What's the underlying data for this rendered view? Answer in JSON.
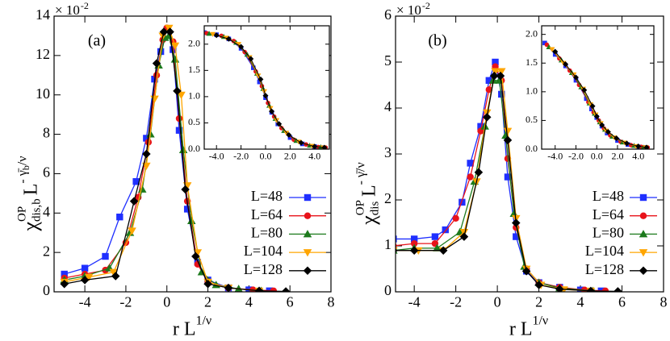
{
  "chart_data": [
    {
      "type": "line",
      "panel_label": "(a)",
      "multiplier": {
        "base": "× 10",
        "exp": "-2"
      },
      "xlabel": {
        "base": "r L",
        "sup": "1/ν"
      },
      "ylabel": {
        "symbol": "χ",
        "sup": "OP",
        "sub": "dis,b",
        "base": "L",
        "exp": "- γ̄",
        "exp_sub": "b",
        "exp_end": "/ν"
      },
      "xlim": [
        -5.5,
        8
      ],
      "ylim": [
        0,
        14
      ],
      "xticks": [
        -4,
        -2,
        0,
        2,
        4,
        6,
        8
      ],
      "yticks": [
        0,
        2,
        4,
        6,
        8,
        10,
        12,
        14
      ],
      "legend": "lower right",
      "series": [
        {
          "name": "L=48",
          "color": "#1f2fff",
          "marker": "square",
          "x": [
            -5,
            -4,
            -3,
            -2.3,
            -1.5,
            -1,
            -0.6,
            -0.3,
            0,
            0.3,
            0.6,
            1,
            1.5,
            2,
            3,
            4,
            5
          ],
          "values": [
            0.9,
            1.2,
            1.8,
            3.8,
            5.6,
            7.8,
            10.8,
            12.2,
            13.3,
            12.3,
            8.2,
            4.2,
            1.5,
            0.6,
            0.2,
            0.1,
            0.05
          ]
        },
        {
          "name": "L=64",
          "color": "#e8131a",
          "marker": "circle",
          "x": [
            -5,
            -4,
            -3,
            -2,
            -1.4,
            -0.9,
            -0.5,
            -0.2,
            0,
            0.3,
            0.6,
            1,
            1.5,
            2,
            3,
            4.2,
            5.2
          ],
          "values": [
            0.7,
            0.9,
            1.1,
            2.5,
            4.8,
            7.6,
            11,
            12.8,
            13.4,
            12.7,
            8.8,
            4.6,
            1.4,
            0.5,
            0.2,
            0.1,
            0.05
          ]
        },
        {
          "name": "L=80",
          "color": "#1c7a1c",
          "marker": "triangle-up",
          "x": [
            -5,
            -4,
            -2.8,
            -1.8,
            -1.2,
            -0.8,
            -0.4,
            -0.1,
            0.1,
            0.4,
            0.8,
            1.2,
            1.7,
            2.4,
            3.5,
            4.6
          ],
          "values": [
            0.6,
            0.8,
            1.2,
            3,
            5.2,
            8,
            11.5,
            12.9,
            13,
            11.8,
            7.2,
            3.6,
            1,
            0.35,
            0.15,
            0.05
          ]
        },
        {
          "name": "L=104",
          "color": "#ffa500",
          "marker": "triangle-down",
          "x": [
            -5,
            -3.8,
            -2.6,
            -1.7,
            -1,
            -0.6,
            -0.2,
            0.1,
            0.4,
            0.7,
            1,
            1.5,
            2,
            3,
            4.5
          ],
          "values": [
            0.5,
            0.75,
            1,
            3.1,
            6.4,
            9.8,
            13,
            13.4,
            12.5,
            10,
            5.4,
            2,
            0.5,
            0.2,
            0.05
          ]
        },
        {
          "name": "L=128",
          "color": "#000000",
          "marker": "diamond",
          "x": [
            -5,
            -4,
            -2.5,
            -1.6,
            -1,
            -0.5,
            -0.15,
            0.15,
            0.5,
            0.9,
            1.4,
            2,
            3,
            4.5,
            5.8
          ],
          "values": [
            0.4,
            0.6,
            0.8,
            4.6,
            7,
            11.6,
            13.2,
            13.2,
            10.2,
            5.2,
            1.8,
            0.4,
            0.2,
            0.05,
            0.02
          ]
        }
      ]
    },
    {
      "type": "line",
      "xlim": [
        -5,
        5.2
      ],
      "ylim": [
        0,
        2.35
      ],
      "xticks": [
        {
          "value": -4,
          "label": "-4.0"
        },
        {
          "value": -2,
          "label": "-2.0"
        },
        {
          "value": 0,
          "label": "0.0"
        },
        {
          "value": 2,
          "label": "2.0"
        },
        {
          "value": 4,
          "label": "4.0"
        }
      ],
      "yticks": [
        {
          "value": 0,
          "label": "0.0"
        },
        {
          "value": 0.5,
          "label": "0.5"
        },
        {
          "value": 1,
          "label": "1.0"
        },
        {
          "value": 1.5,
          "label": "1.5"
        },
        {
          "value": 2,
          "label": "2.0"
        }
      ],
      "series": [
        {
          "color": "#1f2fff",
          "marker": "square",
          "x": [
            -5,
            -4,
            -3,
            -2,
            -1,
            -0.5,
            0,
            0.5,
            1,
            2,
            3,
            4,
            4.6
          ],
          "values": [
            2.22,
            2.18,
            2.1,
            1.92,
            1.55,
            1.28,
            0.98,
            0.7,
            0.48,
            0.22,
            0.1,
            0.05,
            0.03
          ]
        },
        {
          "color": "#e8131a",
          "marker": "circle",
          "x": [
            -4.8,
            -3.6,
            -2.6,
            -1.7,
            -0.8,
            -0.3,
            0.2,
            0.7,
            1.3,
            2.3,
            3.3,
            4.3,
            4.9
          ],
          "values": [
            2.21,
            2.16,
            2.06,
            1.85,
            1.48,
            1.2,
            0.88,
            0.62,
            0.4,
            0.18,
            0.09,
            0.04,
            0.03
          ]
        },
        {
          "color": "#1c7a1c",
          "marker": "triangle-up",
          "x": [
            -4.6,
            -3.4,
            -2.4,
            -1.5,
            -0.7,
            -0.2,
            0.3,
            0.8,
            1.5,
            2.5,
            3.6,
            4.5
          ],
          "values": [
            2.2,
            2.14,
            2.03,
            1.8,
            1.44,
            1.15,
            0.83,
            0.58,
            0.35,
            0.16,
            0.07,
            0.04
          ]
        },
        {
          "color": "#ffa500",
          "marker": "triangle-down",
          "x": [
            -4.3,
            -3.2,
            -2.2,
            -1.3,
            -0.6,
            -0.1,
            0.4,
            0.9,
            1.7,
            2.7,
            3.8,
            4.7
          ],
          "values": [
            2.19,
            2.12,
            2,
            1.75,
            1.4,
            1.1,
            0.78,
            0.55,
            0.31,
            0.14,
            0.06,
            0.03
          ]
        },
        {
          "color": "#000000",
          "marker": "diamond",
          "x": [
            -4,
            -3,
            -2,
            -1.2,
            -0.4,
            0,
            0.5,
            1.1,
            1.9,
            2.9,
            4,
            4.8
          ],
          "values": [
            2.17,
            2.1,
            1.95,
            1.72,
            1.33,
            1.02,
            0.72,
            0.48,
            0.27,
            0.12,
            0.05,
            0.03
          ]
        }
      ]
    },
    {
      "type": "line",
      "panel_label": "(b)",
      "multiplier": {
        "base": "× 10",
        "exp": "-2"
      },
      "xlabel": {
        "base": "r L",
        "sup": "1/ν"
      },
      "ylabel": {
        "symbol": "χ",
        "sup": "OP",
        "sub": "dis",
        "base": "L",
        "exp": "- γ̄/ν"
      },
      "xlim": [
        -4.9,
        8
      ],
      "ylim": [
        0,
        6
      ],
      "xticks": [
        -4,
        -2,
        0,
        2,
        4,
        6,
        8
      ],
      "yticks": [
        0,
        1,
        2,
        3,
        4,
        5,
        6
      ],
      "legend": "lower right",
      "series": [
        {
          "name": "L=48",
          "color": "#1f2fff",
          "marker": "square",
          "x": [
            -5,
            -4,
            -3,
            -2.5,
            -1.7,
            -1.3,
            -0.8,
            -0.4,
            -0.1,
            0.2,
            0.5,
            0.9,
            1.4,
            2,
            3,
            4,
            5
          ],
          "values": [
            1.15,
            1.15,
            1.2,
            1.35,
            1.95,
            2.8,
            3.6,
            4.6,
            5,
            4.3,
            2.5,
            1.2,
            0.45,
            0.2,
            0.1,
            0.04,
            0.02
          ]
        },
        {
          "name": "L=64",
          "color": "#e8131a",
          "marker": "circle",
          "x": [
            -5,
            -4,
            -3,
            -2,
            -1.3,
            -0.8,
            -0.4,
            -0.1,
            0.2,
            0.5,
            0.9,
            1.4,
            2,
            3,
            4.2,
            5.2
          ],
          "values": [
            1,
            1.05,
            1.05,
            1.6,
            2.5,
            3.5,
            4.4,
            4.9,
            4.6,
            2.9,
            1.4,
            0.5,
            0.2,
            0.1,
            0.04,
            0.02
          ]
        },
        {
          "name": "L=80",
          "color": "#1c7a1c",
          "marker": "triangle-up",
          "x": [
            -5,
            -4,
            -2.9,
            -1.8,
            -1.1,
            -0.6,
            -0.2,
            0.1,
            0.4,
            0.8,
            1.3,
            2,
            3,
            4.6
          ],
          "values": [
            0.9,
            0.95,
            0.95,
            1.3,
            2.4,
            3.6,
            4.6,
            4.6,
            3.4,
            1.7,
            0.55,
            0.2,
            0.08,
            0.02
          ]
        },
        {
          "name": "L=104",
          "color": "#ffa500",
          "marker": "triangle-down",
          "x": [
            -5,
            -3.8,
            -2.6,
            -1.6,
            -1,
            -0.5,
            -0.1,
            0.2,
            0.5,
            0.9,
            1.4,
            2.1,
            3.2,
            4.5
          ],
          "values": [
            0.9,
            0.9,
            0.9,
            1.3,
            2.4,
            3.9,
            4.8,
            4.8,
            3.5,
            1.6,
            0.5,
            0.15,
            0.05,
            0.02
          ]
        },
        {
          "name": "L=128",
          "color": "#000000",
          "marker": "diamond",
          "x": [
            -5,
            -4,
            -2.6,
            -1.6,
            -0.9,
            -0.5,
            -0.15,
            0.15,
            0.5,
            0.9,
            1.4,
            2,
            3,
            4.5,
            5.8
          ],
          "values": [
            0.9,
            0.9,
            0.9,
            1.2,
            2.6,
            3.8,
            4.7,
            4.7,
            3.3,
            1.5,
            0.45,
            0.15,
            0.06,
            0.02,
            0.01
          ]
        }
      ]
    },
    {
      "type": "line",
      "xlim": [
        -5.3,
        5.5
      ],
      "ylim": [
        0,
        2.15
      ],
      "xticks": [
        {
          "value": -4,
          "label": "-4.0"
        },
        {
          "value": -2,
          "label": "-2.0"
        },
        {
          "value": 0,
          "label": "0.0"
        },
        {
          "value": 2,
          "label": "2.0"
        },
        {
          "value": 4,
          "label": "4.0"
        }
      ],
      "yticks": [
        {
          "value": 0,
          "label": "0.0"
        },
        {
          "value": 0.5,
          "label": "0.5"
        },
        {
          "value": 1,
          "label": "1.0"
        },
        {
          "value": 1.5,
          "label": "1.5"
        },
        {
          "value": 2,
          "label": "2.0"
        }
      ],
      "series": [
        {
          "color": "#1f2fff",
          "marker": "square",
          "x": [
            -5,
            -4,
            -3,
            -2,
            -1,
            -0.5,
            0,
            0.5,
            1,
            2,
            3,
            4,
            4.6
          ],
          "values": [
            1.85,
            1.65,
            1.45,
            1.2,
            0.88,
            0.7,
            0.55,
            0.4,
            0.28,
            0.15,
            0.08,
            0.04,
            0.03
          ]
        },
        {
          "color": "#e8131a",
          "marker": "circle",
          "x": [
            -4.8,
            -3.6,
            -2.6,
            -1.7,
            -0.8,
            -0.3,
            0.2,
            0.7,
            1.3,
            2.3,
            3.3,
            4.3,
            4.9
          ],
          "values": [
            1.82,
            1.58,
            1.37,
            1.12,
            0.82,
            0.64,
            0.5,
            0.36,
            0.24,
            0.13,
            0.07,
            0.04,
            0.03
          ]
        },
        {
          "color": "#1c7a1c",
          "marker": "triangle-up",
          "x": [
            -4.6,
            -3.4,
            -2.4,
            -1.5,
            -0.7,
            -0.2,
            0.3,
            0.8,
            1.5,
            2.5,
            3.6,
            4.5
          ],
          "values": [
            1.78,
            1.55,
            1.33,
            1.08,
            0.8,
            0.62,
            0.47,
            0.34,
            0.22,
            0.12,
            0.06,
            0.03
          ]
        },
        {
          "color": "#ffa500",
          "marker": "triangle-down",
          "x": [
            -4.3,
            -3.2,
            -2.2,
            -1.3,
            -0.6,
            -0.1,
            0.4,
            0.9,
            1.7,
            2.7,
            3.8,
            4.7
          ],
          "values": [
            1.74,
            1.5,
            1.3,
            1.05,
            0.78,
            0.6,
            0.45,
            0.32,
            0.2,
            0.11,
            0.05,
            0.03
          ]
        },
        {
          "color": "#000000",
          "marker": "diamond",
          "x": [
            -4,
            -3,
            -2,
            -1.2,
            -0.4,
            0,
            0.5,
            1.1,
            1.9,
            2.9,
            4,
            4.8
          ],
          "values": [
            1.7,
            1.48,
            1.25,
            1.03,
            0.75,
            0.57,
            0.42,
            0.3,
            0.19,
            0.1,
            0.05,
            0.03
          ]
        }
      ]
    }
  ]
}
